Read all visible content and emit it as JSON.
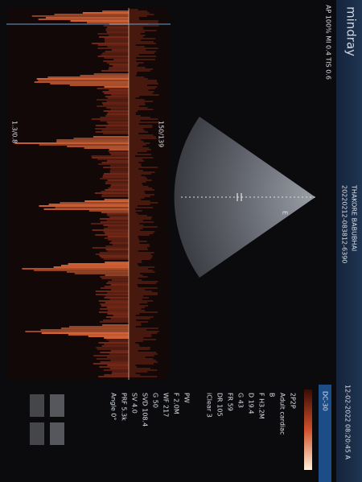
{
  "header": {
    "brand": "mindray",
    "patient": "THAKORE BABUBHAI",
    "exam_id": "20220212-083812-6390",
    "datetime": "12-02-2022 08:20:45 A",
    "acoustic": "AP 100% MI 0.4 TIS 0.6"
  },
  "image": {
    "marker": "E",
    "scale_top": "150/139",
    "scale_bottom": "1.3/0.8"
  },
  "panel": {
    "preset": "DC-30",
    "b_mode": [
      "2P2P",
      "Adult cardiac",
      "B",
      "F H3.2M",
      "D 19.4",
      "G 43",
      "FR 59",
      "DR 105",
      "iClear 3"
    ],
    "pw_mode": [
      "PW",
      "F 2.0M",
      "WF 217",
      "G 50",
      "SVD 108.4",
      "SV 4.0",
      "PRF 5.3k",
      "Angle 0°"
    ]
  }
}
